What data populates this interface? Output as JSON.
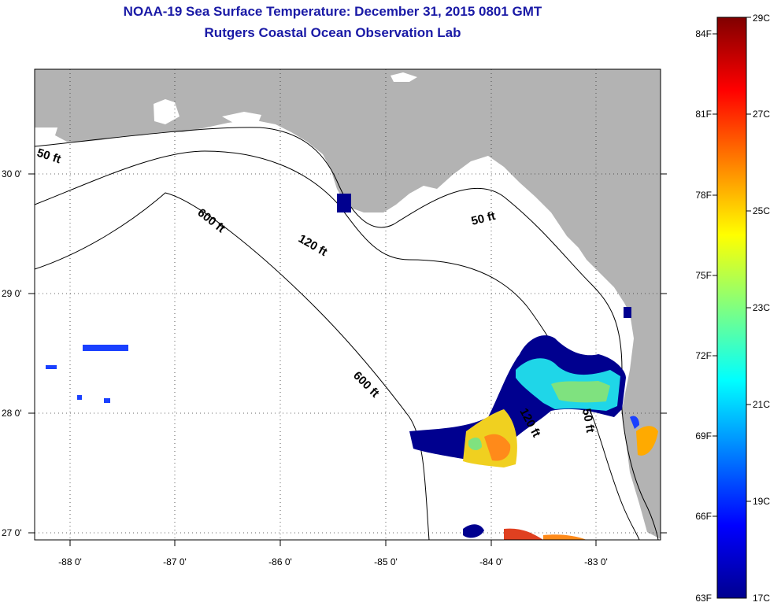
{
  "title": "NOAA-19 Sea Surface Temperature:  December 31, 2015 0801 GMT",
  "subtitle": "Rutgers Coastal Ocean Observation Lab",
  "lat_labels": [
    "30 0'",
    "29 0'",
    "28 0'",
    "27 0'"
  ],
  "lon_labels": [
    "-88 0'",
    "-87 0'",
    "-86 0'",
    "-85 0'",
    "-84 0'",
    "-83 0'"
  ],
  "contour_labels": [
    "50 ft",
    "600 ft",
    "120 ft",
    "50 ft",
    "600 ft",
    "120 ft",
    "50 ft"
  ],
  "colorbar": {
    "fahrenheit": [
      "84F",
      "81F",
      "78F",
      "75F",
      "72F",
      "69F",
      "66F",
      "63F"
    ],
    "celsius": [
      "29C",
      "27C",
      "25C",
      "23C",
      "21C",
      "19C",
      "17C"
    ],
    "range_c": [
      17,
      29
    ]
  },
  "colors": {
    "land": "#b3b3b3",
    "ocean": "#ffffff",
    "title": "#1a1aa6",
    "scale": [
      "#00008f",
      "#0000ff",
      "#0080ff",
      "#00ffff",
      "#80ff80",
      "#ffff00",
      "#ff8000",
      "#ff0000",
      "#800000"
    ]
  }
}
